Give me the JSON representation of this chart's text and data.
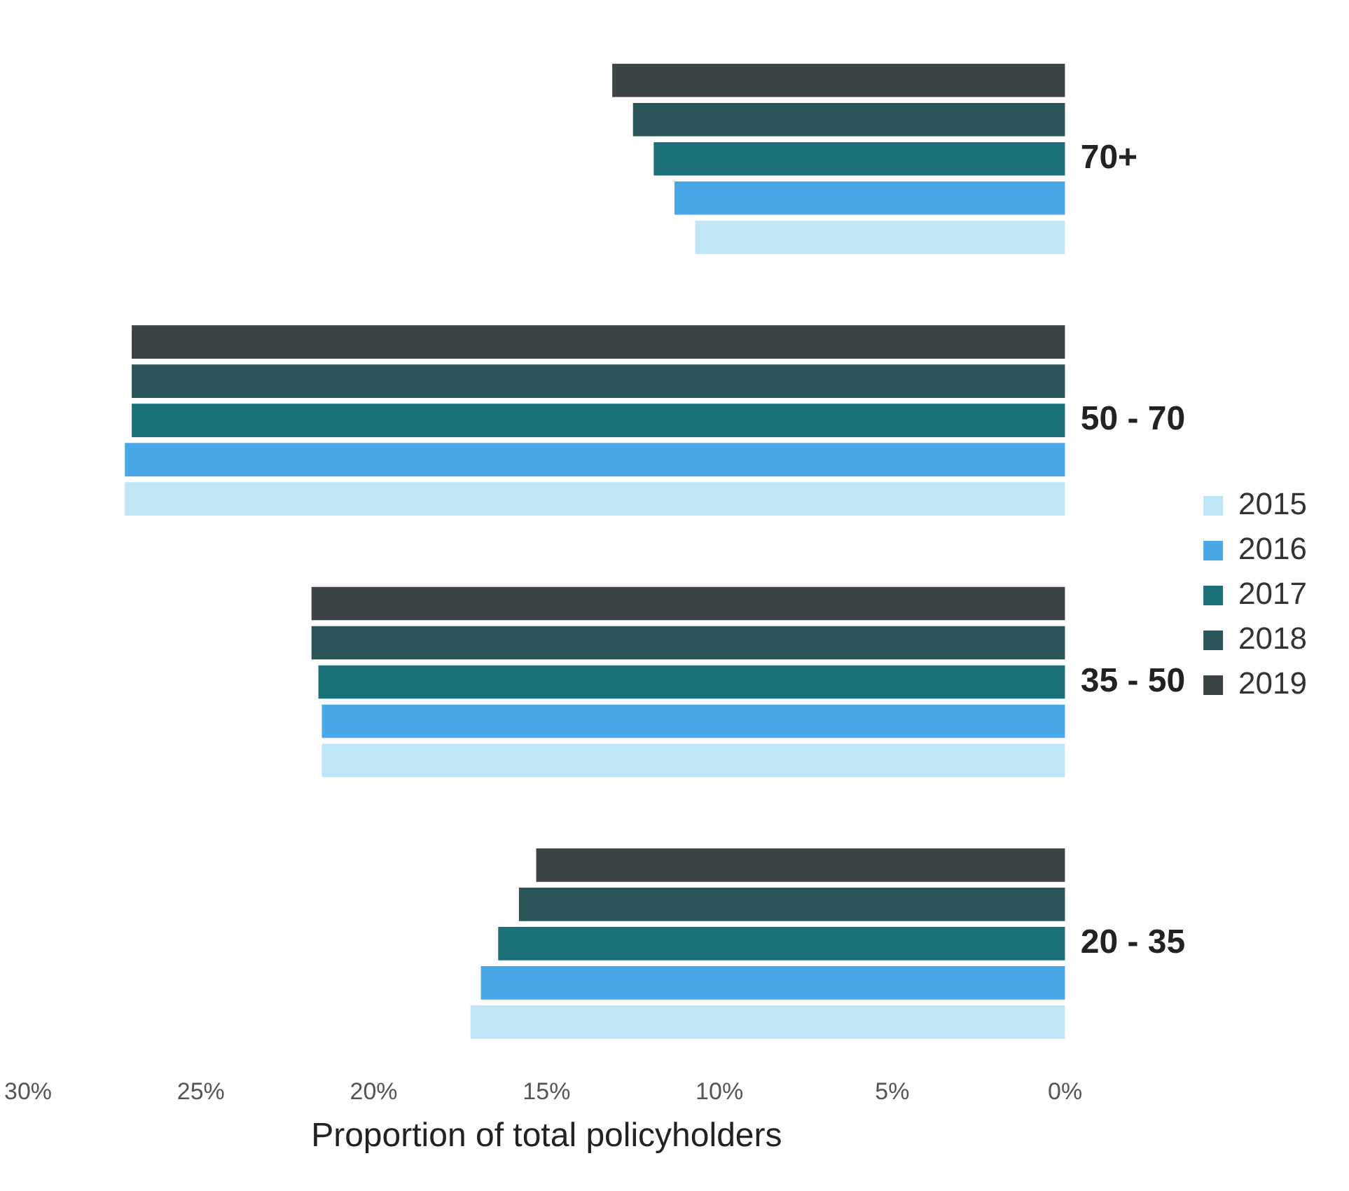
{
  "chart_data": {
    "type": "bar",
    "orientation": "horizontal",
    "ylabel": null,
    "xlabel": "Proportion of total policyholders",
    "categories": [
      "70+",
      "50 - 70",
      "35 - 50",
      "20 - 35"
    ],
    "series": [
      {
        "name": "2015",
        "color": "#bfe6f7",
        "values": [
          10.7,
          27.2,
          21.5,
          17.2
        ]
      },
      {
        "name": "2016",
        "color": "#4aa8e8",
        "values": [
          11.3,
          27.2,
          21.5,
          16.9
        ]
      },
      {
        "name": "2017",
        "color": "#1a6f78",
        "values": [
          11.9,
          27.0,
          21.6,
          16.4
        ]
      },
      {
        "name": "2018",
        "color": "#2a5558",
        "values": [
          12.5,
          27.0,
          21.8,
          15.8
        ]
      },
      {
        "name": "2019",
        "color": "#3d4446",
        "values": [
          13.1,
          27.0,
          21.8,
          15.3
        ]
      }
    ],
    "xlim": [
      30,
      0
    ],
    "xticks": [
      {
        "value": 30,
        "label": "30%"
      },
      {
        "value": 25,
        "label": "25%"
      },
      {
        "value": 20,
        "label": "20%"
      },
      {
        "value": 15,
        "label": "15%"
      },
      {
        "value": 10,
        "label": "10%"
      },
      {
        "value": 5,
        "label": "5%"
      },
      {
        "value": 0,
        "label": "0%"
      }
    ],
    "legend": "right",
    "grid": false
  }
}
